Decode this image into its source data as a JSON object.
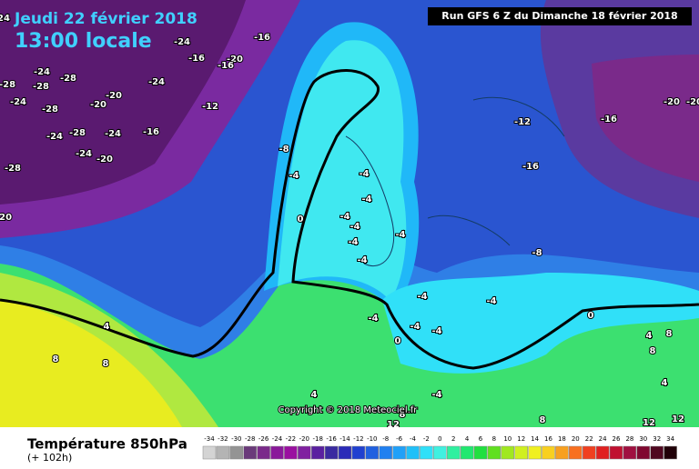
{
  "header": {
    "date": "Jeudi 22 février 2018",
    "time": "13:00 locale",
    "run": "Run GFS 6 Z du Dimanche 18 février 2018"
  },
  "copyright": "Copyright © 2018 Meteociel.fr",
  "legend": {
    "title": "Température 850hPa",
    "subtitle": "(+ 102h)",
    "ticks": [
      -34,
      -32,
      -30,
      -28,
      -26,
      -24,
      -22,
      -20,
      -18,
      -16,
      -14,
      -12,
      -10,
      -8,
      -6,
      -4,
      -2,
      0,
      2,
      4,
      6,
      8,
      10,
      12,
      14,
      16,
      18,
      20,
      22,
      24,
      26,
      28,
      30,
      32,
      34
    ],
    "colors": [
      "#d4d4d4",
      "#b4b4b4",
      "#949494",
      "#6a3a7a",
      "#7a2a8a",
      "#8a1a9a",
      "#9a10a0",
      "#8020a0",
      "#5a20a0",
      "#3a2aa0",
      "#2a2ab8",
      "#2040d0",
      "#2060e0",
      "#2080f0",
      "#20a0f8",
      "#20c0f8",
      "#30e0f8",
      "#40f0e0",
      "#30f0a0",
      "#20e870",
      "#20e040",
      "#60e020",
      "#a0e820",
      "#d0f020",
      "#f0f020",
      "#f8d020",
      "#f8a020",
      "#f87020",
      "#f04020",
      "#e02020",
      "#c01030",
      "#a01040",
      "#800830",
      "#500820",
      "#200008"
    ]
  },
  "map_labels": [
    24,
    -24,
    -16,
    -16,
    -20,
    -16,
    -12,
    -24,
    -20,
    -20,
    -24,
    -28,
    -28,
    -28,
    -28,
    -24,
    -28,
    -24,
    -16,
    -24,
    -24,
    -20,
    -28,
    -20,
    -8,
    -4,
    0,
    -4,
    -4,
    -4,
    -4,
    -4,
    -4,
    -4,
    -4,
    -4,
    -4,
    -4,
    0,
    -4,
    -12,
    -16,
    -20,
    -20,
    -16,
    -8,
    0,
    4,
    8,
    8,
    4,
    4,
    8,
    8,
    4,
    -4,
    8,
    8,
    12,
    12,
    12
  ]
}
